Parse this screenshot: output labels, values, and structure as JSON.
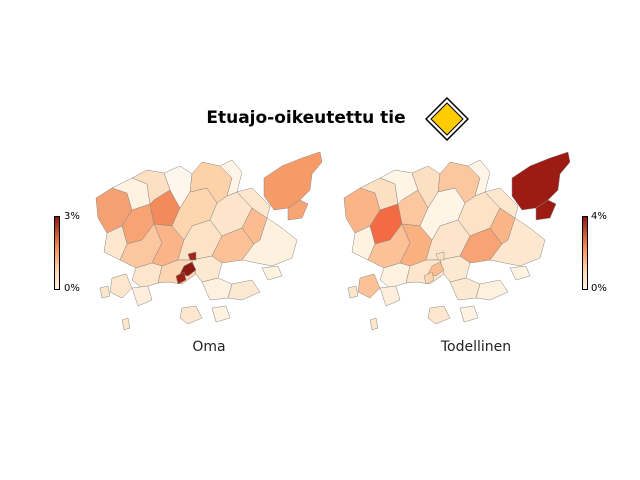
{
  "title": "Etuajo-oikeutettu tie",
  "sign_icon": "priority-road-sign-icon",
  "colors": {
    "sign_fill": "#ffcc00",
    "scale_low": "#fff5e6",
    "scale_high": "#8b1a10"
  },
  "maps": [
    {
      "label": "Oma",
      "scale_max": "3%",
      "scale_min": "0%"
    },
    {
      "label": "Todellinen",
      "scale_max": "4%",
      "scale_min": "0%"
    }
  ]
}
